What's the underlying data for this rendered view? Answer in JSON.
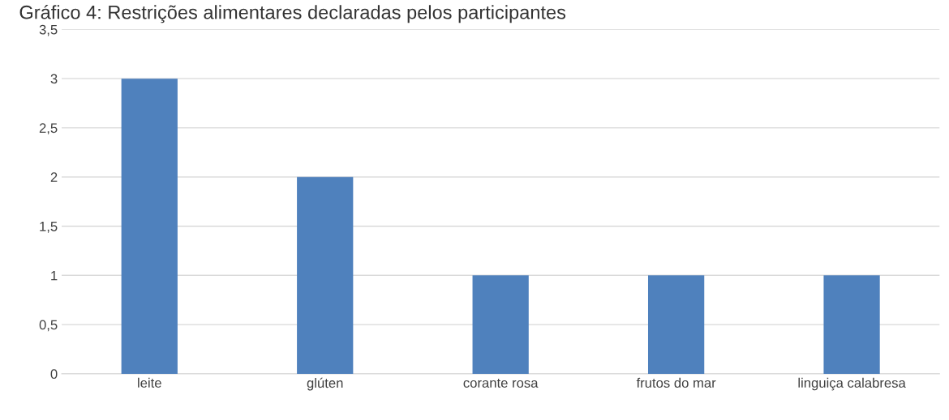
{
  "chart_data": {
    "type": "bar",
    "title": "Gráfico 4: Restrições alimentares declaradas pelos participantes",
    "categories": [
      "leite",
      "glúten",
      "corante rosa",
      "frutos do mar",
      "linguiça calabresa"
    ],
    "values": [
      3,
      2,
      1,
      1,
      1
    ],
    "color": "#4f81bd",
    "ylim": [
      0,
      3.5
    ],
    "yticks": [
      {
        "value": 0,
        "label": "0"
      },
      {
        "value": 0.5,
        "label": "0,5"
      },
      {
        "value": 1,
        "label": "1"
      },
      {
        "value": 1.5,
        "label": "1,5"
      },
      {
        "value": 2,
        "label": "2"
      },
      {
        "value": 2.5,
        "label": "2,5"
      },
      {
        "value": 3,
        "label": "3"
      },
      {
        "value": 3.5,
        "label": "3,5"
      }
    ],
    "grid": "y"
  }
}
